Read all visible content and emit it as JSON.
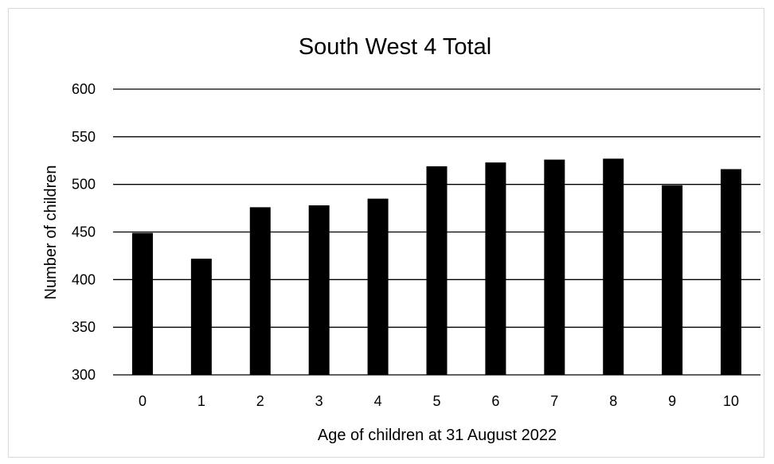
{
  "chart_data": {
    "type": "bar",
    "title": "South West 4 Total",
    "xlabel": "Age of children at 31 August 2022",
    "ylabel": "Number of children",
    "categories": [
      "0",
      "1",
      "2",
      "3",
      "4",
      "5",
      "6",
      "7",
      "8",
      "9",
      "10"
    ],
    "values": [
      449,
      422,
      476,
      478,
      485,
      519,
      523,
      526,
      527,
      499,
      516
    ],
    "ylim": [
      300,
      600
    ],
    "yticks": [
      300,
      350,
      400,
      450,
      500,
      550,
      600
    ],
    "grid": true,
    "legend": "none",
    "bar_color": "#000000",
    "grid_color": "#000000"
  }
}
